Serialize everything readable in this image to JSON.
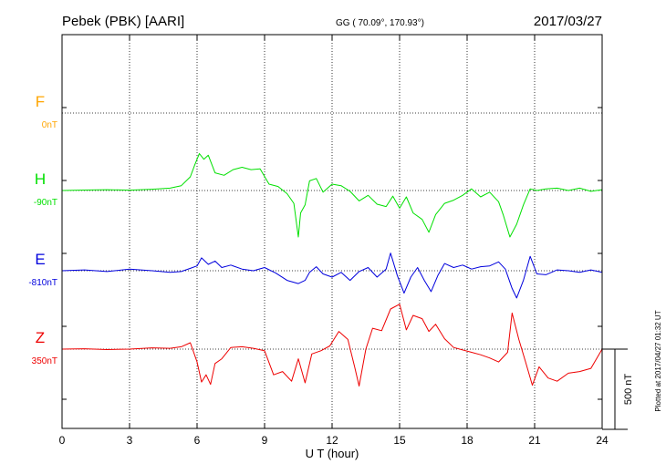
{
  "header": {
    "station": "Pebek (PBK)  [AARI]",
    "coords": "GG ( 70.09°, 170.93°)",
    "date": "2017/03/27"
  },
  "footer": {
    "plotted": "Plotted at 2017/04/27 01:32 UT"
  },
  "chart_data": {
    "type": "line",
    "xlabel": "U T (hour)",
    "xlim": [
      0,
      24
    ],
    "xticks": [
      0,
      3,
      6,
      9,
      12,
      15,
      18,
      21,
      24
    ],
    "scale_label": "500 nT",
    "scale_nT": 500,
    "grid": true,
    "series": [
      {
        "name": "F",
        "baseline": "0nT",
        "color": "#ffa500",
        "offset_nT": 0,
        "x": [],
        "y": []
      },
      {
        "name": "H",
        "baseline": "-90nT",
        "color": "#00e000",
        "offset_nT": 0,
        "x": [
          0,
          1,
          2,
          3,
          4,
          4.8,
          5.3,
          5.7,
          5.9,
          6.1,
          6.3,
          6.5,
          6.8,
          7.2,
          7.6,
          8.0,
          8.4,
          8.8,
          9.2,
          9.6,
          10.0,
          10.3,
          10.5,
          10.6,
          10.8,
          11.0,
          11.3,
          11.6,
          12.0,
          12.4,
          12.8,
          13.2,
          13.6,
          14.0,
          14.4,
          14.7,
          15.0,
          15.3,
          15.6,
          16.0,
          16.3,
          16.6,
          17.0,
          17.4,
          17.8,
          18.2,
          18.6,
          19.0,
          19.4,
          19.6,
          19.9,
          20.2,
          20.5,
          20.8,
          21.1,
          21.5,
          22.0,
          22.5,
          23.0,
          23.5,
          24.0
        ],
        "y": [
          0,
          3,
          5,
          2,
          8,
          15,
          30,
          85,
          160,
          230,
          195,
          220,
          110,
          95,
          130,
          145,
          130,
          135,
          40,
          25,
          -20,
          -80,
          -290,
          -140,
          -90,
          60,
          75,
          -10,
          40,
          30,
          -5,
          -65,
          -30,
          -85,
          -100,
          -35,
          -110,
          -40,
          -140,
          -180,
          -260,
          -150,
          -80,
          -60,
          -30,
          10,
          -40,
          -10,
          -70,
          -150,
          -290,
          -210,
          -90,
          10,
          0,
          10,
          15,
          0,
          15,
          -5,
          5
        ]
      },
      {
        "name": "E",
        "baseline": "-810nT",
        "color": "#0000dd",
        "offset_nT": 0,
        "x": [
          0,
          1,
          2,
          3,
          4,
          4.8,
          5.3,
          5.7,
          6.0,
          6.2,
          6.5,
          6.8,
          7.1,
          7.5,
          8.0,
          8.5,
          9.0,
          9.5,
          10.0,
          10.5,
          10.8,
          11.0,
          11.3,
          11.6,
          12.0,
          12.4,
          12.8,
          13.2,
          13.6,
          14.0,
          14.4,
          14.6,
          14.9,
          15.2,
          15.5,
          15.8,
          16.1,
          16.4,
          16.7,
          17.0,
          17.4,
          17.8,
          18.2,
          18.6,
          19.0,
          19.4,
          19.7,
          20.0,
          20.2,
          20.5,
          20.8,
          21.1,
          21.5,
          22.0,
          22.5,
          23.0,
          23.5,
          24.0
        ],
        "y": [
          0,
          5,
          -5,
          10,
          0,
          -10,
          -5,
          15,
          30,
          80,
          40,
          60,
          20,
          35,
          10,
          0,
          20,
          -15,
          -60,
          -80,
          -60,
          -10,
          25,
          -20,
          -40,
          -10,
          -60,
          -5,
          20,
          -40,
          10,
          110,
          -30,
          -140,
          -40,
          20,
          -60,
          -130,
          -30,
          45,
          20,
          35,
          10,
          25,
          30,
          55,
          10,
          -110,
          -170,
          -60,
          90,
          -20,
          -25,
          5,
          0,
          -10,
          5,
          -10
        ]
      },
      {
        "name": "Z",
        "baseline": "350nT",
        "color": "#ee0000",
        "offset_nT": 0,
        "x": [
          0,
          1,
          2,
          3,
          4,
          4.8,
          5.3,
          5.7,
          6.0,
          6.2,
          6.4,
          6.6,
          6.8,
          7.1,
          7.5,
          8.0,
          8.5,
          9.0,
          9.4,
          9.8,
          10.2,
          10.5,
          10.8,
          11.1,
          11.5,
          11.9,
          12.3,
          12.7,
          13.0,
          13.2,
          13.5,
          13.8,
          14.2,
          14.6,
          15.0,
          15.3,
          15.6,
          16.0,
          16.3,
          16.6,
          17.0,
          17.4,
          17.8,
          18.2,
          18.6,
          19.0,
          19.4,
          19.8,
          20.0,
          20.3,
          20.6,
          20.9,
          21.2,
          21.6,
          22.0,
          22.5,
          23.0,
          23.5,
          24.0
        ],
        "y": [
          0,
          2,
          -3,
          0,
          8,
          5,
          15,
          40,
          -80,
          -205,
          -160,
          -220,
          -90,
          -60,
          10,
          15,
          5,
          -10,
          -160,
          -140,
          -200,
          -60,
          -210,
          -30,
          -10,
          20,
          110,
          60,
          -110,
          -230,
          0,
          130,
          115,
          250,
          280,
          120,
          210,
          190,
          110,
          155,
          65,
          10,
          -5,
          -20,
          -35,
          -55,
          -80,
          -20,
          225,
          60,
          -80,
          -225,
          -110,
          -180,
          -200,
          -150,
          -140,
          -120,
          0
        ]
      }
    ]
  }
}
